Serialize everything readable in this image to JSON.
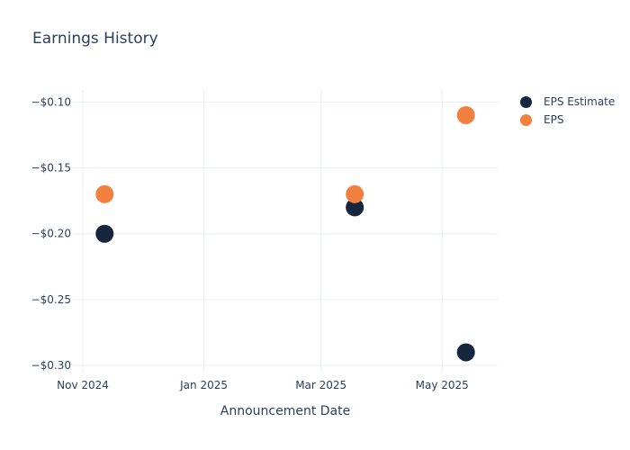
{
  "title": "Earnings History",
  "chart_data": {
    "type": "scatter",
    "title": "Earnings History",
    "xlabel": "Announcement Date",
    "ylabel": "",
    "grid": true,
    "legend_position": "right",
    "background_color": "#FFFFFF",
    "grid_color": "#E9EEF7",
    "text_color": "#2A3F5F",
    "marker_size_px": 20,
    "x_range": [
      "2024-10-27",
      "2025-05-29"
    ],
    "y_range": [
      -0.3054,
      -0.0909
    ],
    "x_ticks": [
      {
        "date": "2024-11-01",
        "label": "Nov 2024"
      },
      {
        "date": "2025-01-01",
        "label": "Jan 2025"
      },
      {
        "date": "2025-03-01",
        "label": "Mar 2025"
      },
      {
        "date": "2025-05-01",
        "label": "May 2025"
      }
    ],
    "y_ticks": [
      {
        "value": -0.1,
        "label": "−$0.10"
      },
      {
        "value": -0.15,
        "label": "−$0.15"
      },
      {
        "value": -0.2,
        "label": "−$0.20"
      },
      {
        "value": -0.25,
        "label": "−$0.25"
      },
      {
        "value": -0.3,
        "label": "−$0.30"
      }
    ],
    "series": [
      {
        "name": "EPS Estimate",
        "color": "#15263E",
        "points": [
          {
            "x": "2024-11-12",
            "y": -0.2
          },
          {
            "x": "2025-03-18",
            "y": -0.18
          },
          {
            "x": "2025-05-13",
            "y": -0.29
          }
        ]
      },
      {
        "name": "EPS",
        "color": "#F28140",
        "points": [
          {
            "x": "2024-11-12",
            "y": -0.17
          },
          {
            "x": "2025-03-18",
            "y": -0.17
          },
          {
            "x": "2025-05-13",
            "y": -0.11
          }
        ]
      }
    ]
  }
}
